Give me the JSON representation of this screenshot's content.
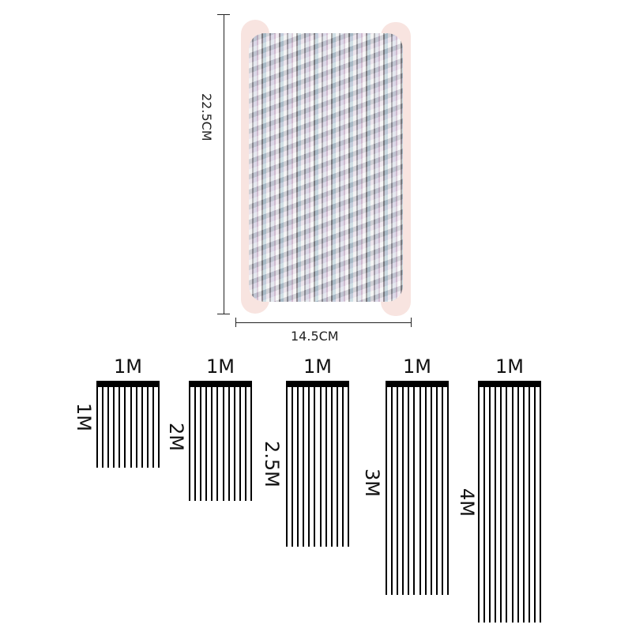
{
  "product_dimensions": {
    "height_label": "22.5CM",
    "width_label": "14.5CM"
  },
  "fringe_sizes": [
    {
      "width": "1M",
      "length": "1M",
      "length_m": 1
    },
    {
      "width": "1M",
      "length": "2M",
      "length_m": 2
    },
    {
      "width": "1M",
      "length": "2.5M",
      "length_m": 2.5
    },
    {
      "width": "1M",
      "length": "3M",
      "length_m": 3
    },
    {
      "width": "1M",
      "length": "4M",
      "length_m": 4
    }
  ],
  "colors": {
    "foil": "#c0c0c8",
    "diagram": "#000000",
    "backdrop": "#f8e4e0"
  }
}
